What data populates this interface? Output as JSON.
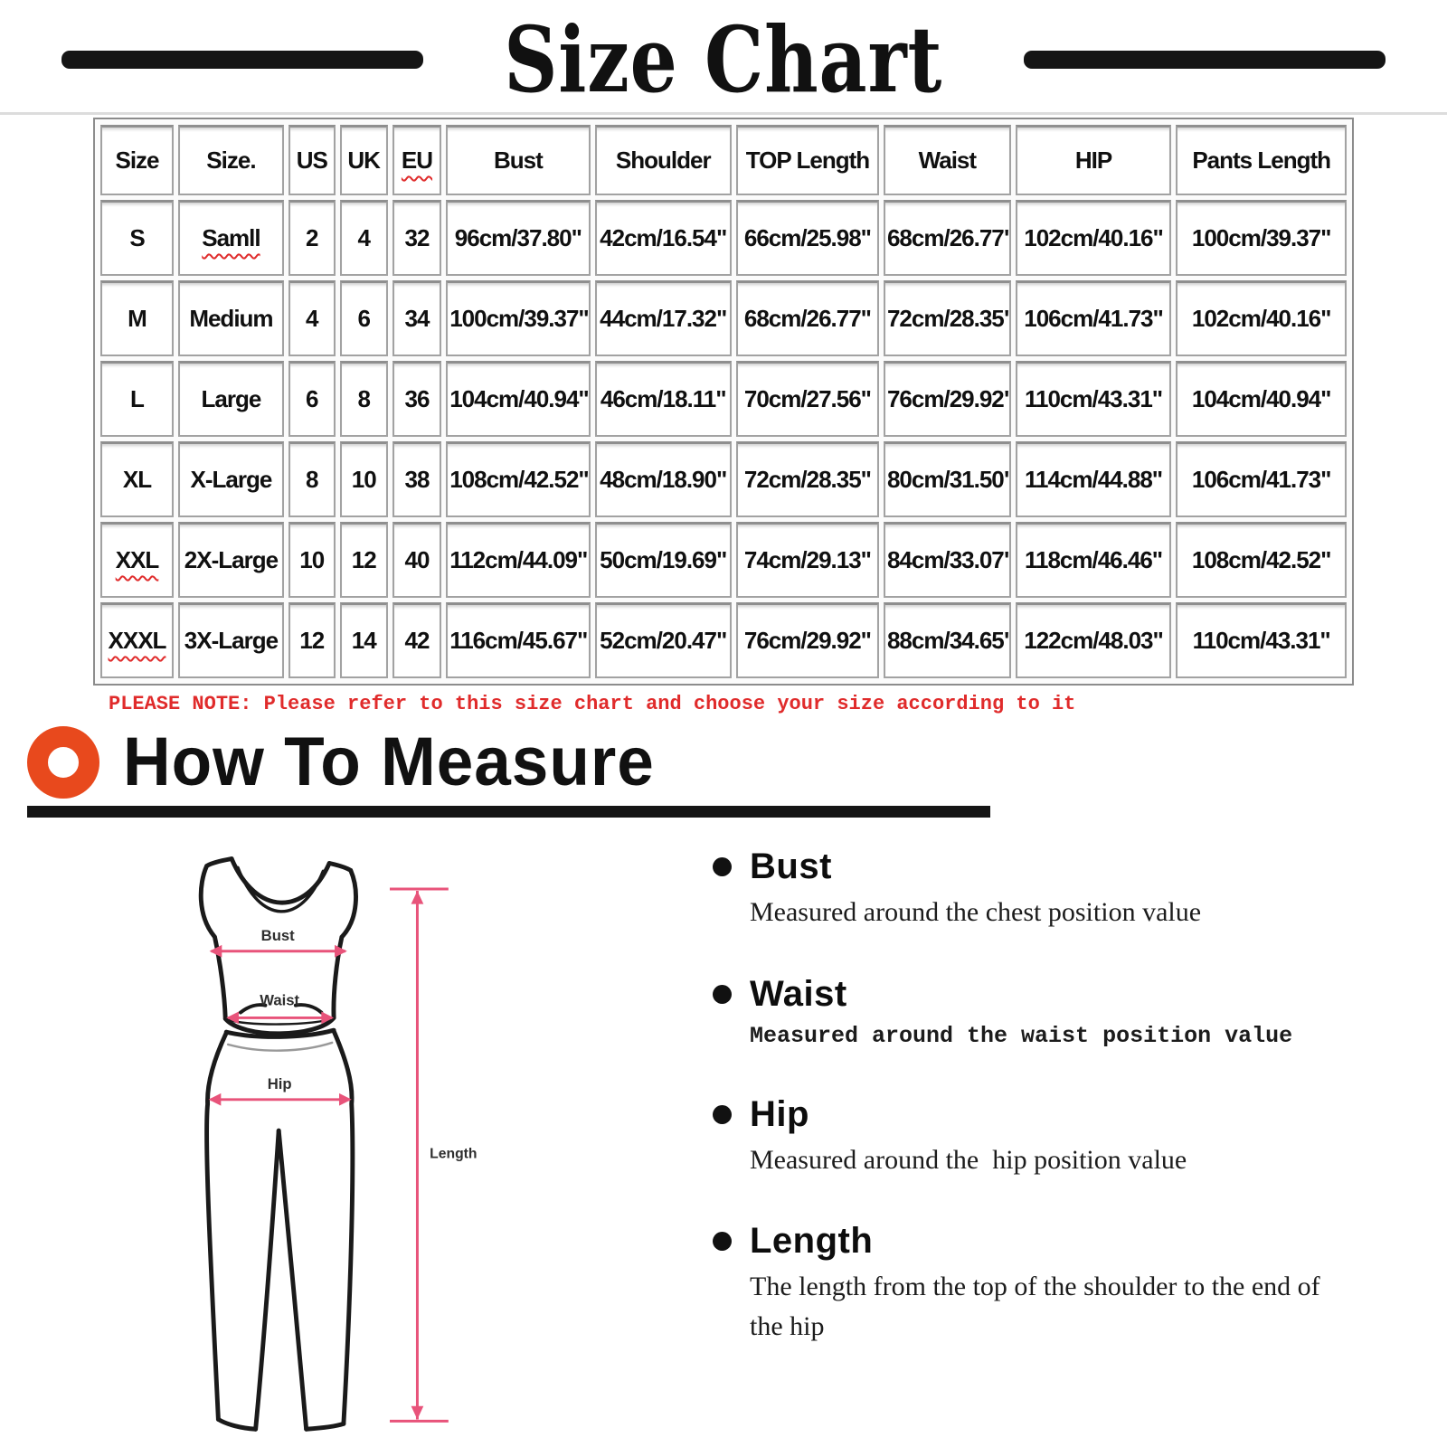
{
  "title": "Size Chart",
  "table": {
    "headers": [
      "Size",
      "Size.",
      "US",
      "UK",
      "EU",
      "Bust",
      "Shoulder",
      "TOP Length",
      "Waist",
      "HIP",
      "Pants Length"
    ],
    "rows": [
      [
        "S",
        "Samll",
        "2",
        "4",
        "32",
        "96cm/37.80\"",
        "42cm/16.54\"",
        "66cm/25.98\"",
        "68cm/26.77\"",
        "102cm/40.16\"",
        "100cm/39.37\""
      ],
      [
        "M",
        "Medium",
        "4",
        "6",
        "34",
        "100cm/39.37\"",
        "44cm/17.32\"",
        "68cm/26.77\"",
        "72cm/28.35\"",
        "106cm/41.73\"",
        "102cm/40.16\""
      ],
      [
        "L",
        "Large",
        "6",
        "8",
        "36",
        "104cm/40.94\"",
        "46cm/18.11\"",
        "70cm/27.56\"",
        "76cm/29.92\"",
        "110cm/43.31\"",
        "104cm/40.94\""
      ],
      [
        "XL",
        "X-Large",
        "8",
        "10",
        "38",
        "108cm/42.52\"",
        "48cm/18.90\"",
        "72cm/28.35\"",
        "80cm/31.50\"",
        "114cm/44.88\"",
        "106cm/41.73\""
      ],
      [
        "XXL",
        "2X-Large",
        "10",
        "12",
        "40",
        "112cm/44.09\"",
        "50cm/19.69\"",
        "74cm/29.13\"",
        "84cm/33.07\"",
        "118cm/46.46\"",
        "108cm/42.52\""
      ],
      [
        "XXXL",
        "3X-Large",
        "12",
        "14",
        "42",
        "116cm/45.67\"",
        "52cm/20.47\"",
        "76cm/29.92\"",
        "88cm/34.65\"",
        "122cm/48.03\"",
        "110cm/43.31\""
      ]
    ],
    "wavy_underline_texts": [
      "EU",
      "Samll",
      "XXL",
      "XXXL"
    ]
  },
  "note": "PLEASE NOTE: Please refer to this size chart and choose your size according to it",
  "how_to_measure": {
    "title": "How To Measure",
    "items": [
      {
        "label": "Bust",
        "description": "Measured around the chest position value"
      },
      {
        "label": "Waist",
        "description": "Measured around the waist position value"
      },
      {
        "label": "Hip",
        "description": "Measured around the  hip position value"
      },
      {
        "label": "Length",
        "description": "The length from the top of the shoulder to the end of the hip"
      }
    ]
  },
  "diagram": {
    "labels": {
      "bust": "Bust",
      "waist": "Waist",
      "hip": "Hip",
      "length": "Length"
    }
  },
  "colors": {
    "accent_orange": "#e8491d",
    "note_red": "#e02b2b",
    "arrow_pink": "#e8537a",
    "bar_black": "#151515"
  }
}
